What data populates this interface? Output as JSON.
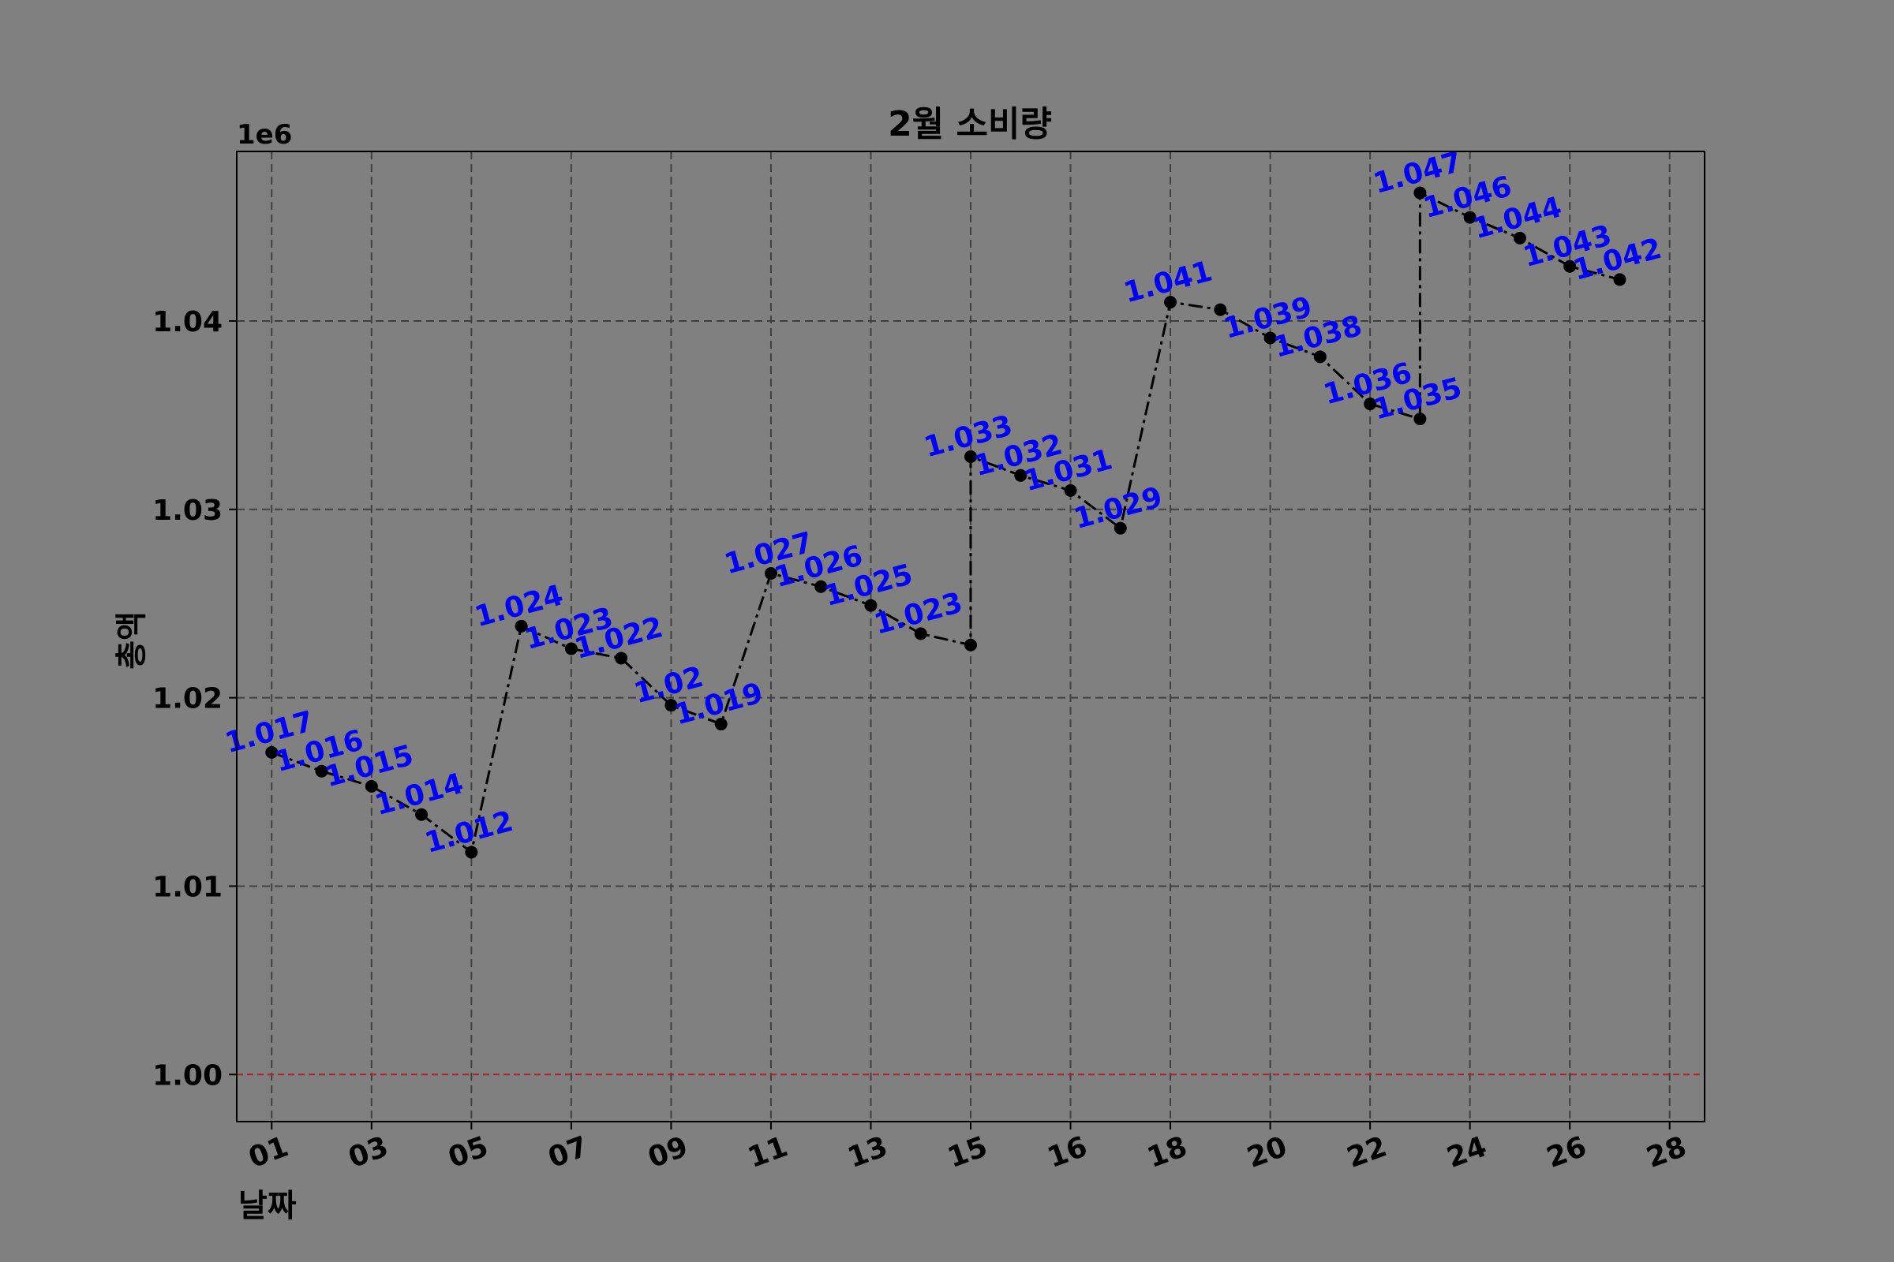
{
  "chart_data": {
    "type": "line",
    "title": "2월 소비량",
    "xlabel": "날짜",
    "ylabel": "총액",
    "offset_label": "1e6",
    "ylim": [
      0.9975,
      1.049
    ],
    "grid": true,
    "x": [
      1,
      2,
      3,
      4,
      5,
      6,
      7,
      8,
      9,
      10,
      11,
      12,
      13,
      14,
      15,
      16,
      17,
      18,
      19,
      20,
      21,
      22,
      23,
      24,
      25,
      26,
      27,
      28,
      29
    ],
    "x_tick_positions": [
      1,
      3,
      5,
      7,
      9,
      11,
      13,
      15,
      17,
      19,
      21,
      23,
      25,
      27,
      29
    ],
    "x_tick_labels": [
      "01",
      "03",
      "05",
      "07",
      "09",
      "11",
      "13",
      "15",
      "16",
      "18",
      "20",
      "22",
      "24",
      "26",
      "28"
    ],
    "y_ticks": [
      1.0,
      1.01,
      1.02,
      1.03,
      1.04
    ],
    "y_tick_labels": [
      "1.00",
      "1.01",
      "1.02",
      "1.03",
      "1.04"
    ],
    "series": [
      {
        "values": [
          1.0171,
          1.0161,
          1.0153,
          1.0138,
          1.0118,
          1.0238,
          1.0226,
          1.0221,
          1.0196,
          1.0186,
          1.0266,
          1.0259,
          1.0249,
          1.0234,
          1.0228,
          1.0328,
          1.0318,
          1.031,
          1.029,
          1.041,
          1.0406,
          1.0391,
          1.0381,
          1.0356,
          1.0348,
          1.0468,
          1.0455,
          1.0444,
          1.0429,
          1.0422
        ],
        "x": [
          1,
          2,
          3,
          4,
          5,
          6,
          7,
          8,
          9,
          10,
          11,
          12,
          13,
          14,
          15,
          15,
          16,
          17,
          18,
          19,
          20,
          21,
          22,
          23,
          24,
          24.0001,
          25,
          26,
          27,
          28
        ],
        "labels": [
          "1.017",
          "1.016",
          "1.015",
          "1.014",
          "1.012",
          "1.024",
          "1.023",
          "1.022",
          "1.02",
          "1.019",
          "1.027",
          "1.026",
          "1.025",
          "1.023",
          "",
          "1.033",
          "1.032",
          "1.031",
          "1.029",
          "1.041",
          "",
          "1.039",
          "1.038",
          "1.036",
          "1.035",
          "1.047",
          "1.046",
          "1.044",
          "1.043",
          "1.042"
        ]
      }
    ],
    "reference_line": {
      "y": 1.0,
      "color": "#b22222"
    },
    "colors": {
      "line": "#000000",
      "marker": "#000000",
      "label": "#0000ff",
      "grid": "#404040",
      "background": "#808080"
    }
  }
}
